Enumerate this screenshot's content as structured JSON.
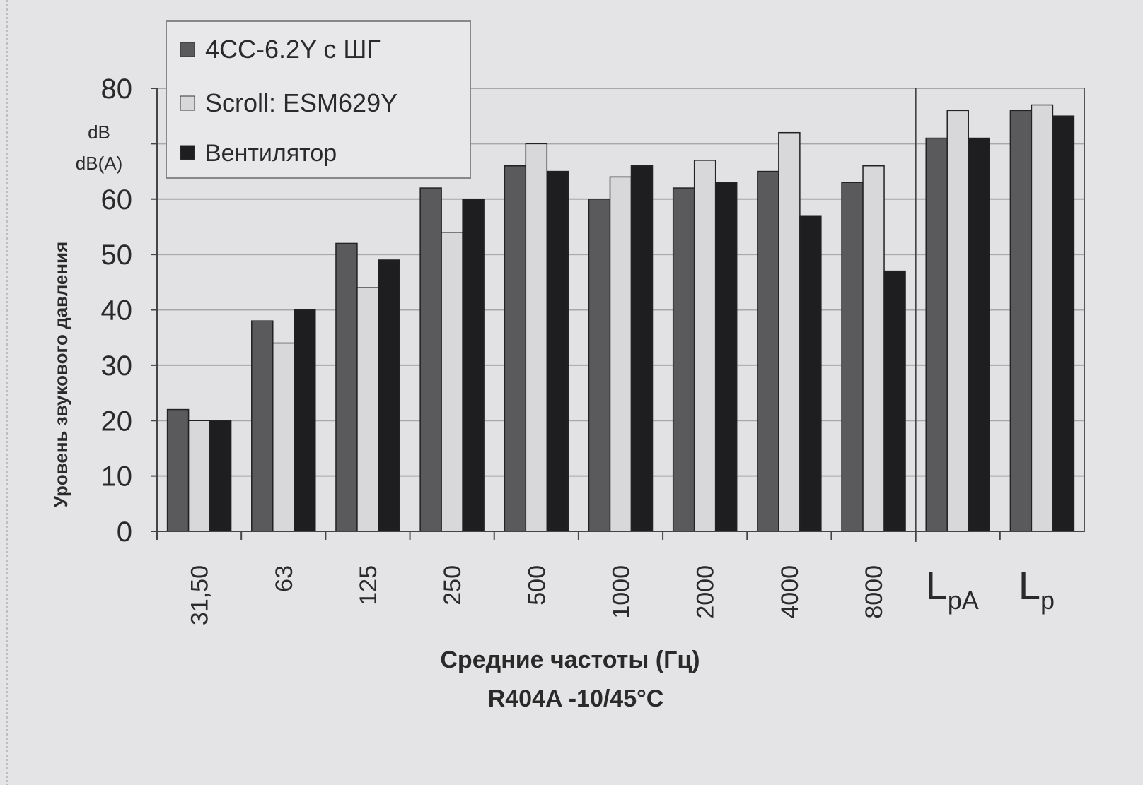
{
  "chart_data": {
    "type": "bar",
    "xlabel": "Средние частоты (Гц)",
    "subtitle": "R404A  -10/45°C",
    "ylabel": "Уровень звукового давления",
    "yunits": [
      "dB",
      "dB(A)"
    ],
    "ylim": [
      0,
      80
    ],
    "yticks": [
      0,
      10,
      20,
      30,
      40,
      50,
      60,
      70,
      80
    ],
    "ytick_labels": [
      "0",
      "10",
      "20",
      "30",
      "40",
      "50",
      "60",
      "",
      "80"
    ],
    "grid": true,
    "legend_position": "top-left",
    "categories": [
      "31,50",
      "63",
      "125",
      "250",
      "500",
      "1000",
      "2000",
      "4000",
      "8000",
      "LpA",
      "Lp"
    ],
    "category_labels": [
      {
        "main": "31,50",
        "sub": ""
      },
      {
        "main": "63",
        "sub": ""
      },
      {
        "main": "125",
        "sub": ""
      },
      {
        "main": "250",
        "sub": ""
      },
      {
        "main": "500",
        "sub": ""
      },
      {
        "main": "1000",
        "sub": ""
      },
      {
        "main": "2000",
        "sub": ""
      },
      {
        "main": "4000",
        "sub": ""
      },
      {
        "main": "8000",
        "sub": ""
      },
      {
        "main": "L",
        "sub": "pA"
      },
      {
        "main": "L",
        "sub": "p"
      }
    ],
    "series": [
      {
        "name": "4CC-6.2Y с ШГ",
        "color": "#5a5a5c",
        "values": [
          22,
          38,
          52,
          62,
          66,
          60,
          62,
          65,
          63,
          71,
          76
        ]
      },
      {
        "name": "Scroll: ESM629Y",
        "color": "#d8d8da",
        "values": [
          20,
          34,
          44,
          54,
          70,
          64,
          67,
          72,
          66,
          76,
          77
        ]
      },
      {
        "name": "Вентилятор",
        "color": "#1e1e20",
        "values": [
          20,
          40,
          49,
          60,
          65,
          66,
          63,
          57,
          47,
          71,
          75
        ]
      }
    ]
  }
}
